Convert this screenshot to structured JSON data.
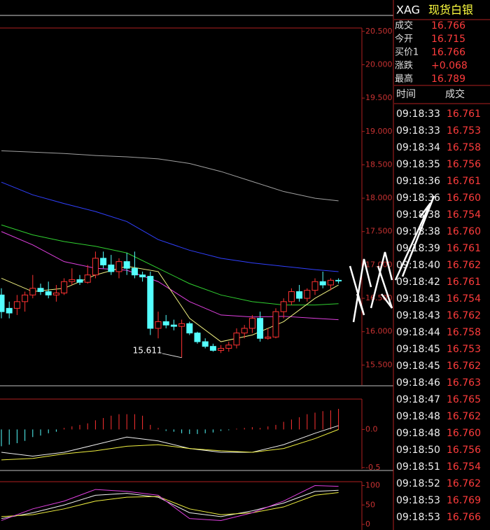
{
  "chart_data": [
    {
      "type": "candlestick",
      "open": [
        16.55,
        16.35,
        16.35,
        16.45,
        16.55,
        16.65,
        16.6,
        16.55,
        16.58,
        16.75,
        16.78,
        16.74,
        16.85,
        17.1,
        17.0,
        16.9,
        17.05,
        16.95,
        16.85,
        16.83,
        16.05,
        16.15,
        16.1,
        16.08,
        16.12,
        15.98,
        15.85,
        15.78,
        15.72,
        15.75,
        15.8,
        15.98,
        16.05,
        16.2,
        15.9,
        15.92,
        16.3,
        16.45,
        16.6,
        16.5,
        16.62,
        16.75,
        16.7,
        16.77
      ],
      "high": [
        16.65,
        16.45,
        16.55,
        16.6,
        16.85,
        16.72,
        16.75,
        16.7,
        16.8,
        16.95,
        16.85,
        17.0,
        17.2,
        17.2,
        17.15,
        17.1,
        17.18,
        17.2,
        16.9,
        16.9,
        16.3,
        16.25,
        16.18,
        16.18,
        16.15,
        16.0,
        15.9,
        15.82,
        15.8,
        15.85,
        16.05,
        16.1,
        16.25,
        16.3,
        16.05,
        16.35,
        16.5,
        16.65,
        16.7,
        16.65,
        16.8,
        16.9,
        16.8,
        16.8
      ],
      "low": [
        16.2,
        16.2,
        16.25,
        16.3,
        16.5,
        16.55,
        16.5,
        16.45,
        16.55,
        16.7,
        16.7,
        16.72,
        16.8,
        16.95,
        16.85,
        16.8,
        16.85,
        16.8,
        16.75,
        15.95,
        15.9,
        16.05,
        16.02,
        15.611,
        15.95,
        15.82,
        15.75,
        15.7,
        15.68,
        15.7,
        15.75,
        15.9,
        15.98,
        15.85,
        15.88,
        15.9,
        16.2,
        16.4,
        16.45,
        16.45,
        16.55,
        16.65,
        16.62,
        16.72
      ],
      "close": [
        16.3,
        16.28,
        16.45,
        16.55,
        16.65,
        16.6,
        16.55,
        16.58,
        16.75,
        16.78,
        16.74,
        16.85,
        17.1,
        17.0,
        16.9,
        17.05,
        16.95,
        16.85,
        16.82,
        16.05,
        16.15,
        16.1,
        16.08,
        16.12,
        15.98,
        15.85,
        15.78,
        15.72,
        15.75,
        15.8,
        15.98,
        16.05,
        16.2,
        15.9,
        15.92,
        16.3,
        16.45,
        16.6,
        16.5,
        16.62,
        16.75,
        16.7,
        16.77,
        16.766
      ],
      "up_color": "#ff3232",
      "down_color": "#54ffff",
      "lines": [
        {
          "color": "#a0a0a0",
          "x": [
            0,
            4,
            8,
            12,
            16,
            20,
            24,
            28,
            32,
            36,
            40,
            43
          ],
          "values": [
            18.71,
            18.69,
            18.67,
            18.64,
            18.62,
            18.59,
            18.52,
            18.4,
            18.25,
            18.1,
            18.0,
            17.96
          ]
        },
        {
          "color": "#3040ff",
          "x": [
            0,
            4,
            8,
            12,
            16,
            20,
            24,
            28,
            32,
            36,
            40,
            43
          ],
          "values": [
            18.24,
            18.05,
            17.92,
            17.8,
            17.65,
            17.38,
            17.22,
            17.1,
            17.03,
            16.98,
            16.93,
            16.9
          ]
        },
        {
          "color": "#30d030",
          "x": [
            0,
            4,
            8,
            12,
            16,
            20,
            24,
            28,
            32,
            36,
            40,
            43
          ],
          "values": [
            17.6,
            17.45,
            17.35,
            17.28,
            17.18,
            16.95,
            16.72,
            16.55,
            16.45,
            16.4,
            16.4,
            16.42
          ]
        },
        {
          "color": "#e040e0",
          "x": [
            0,
            4,
            8,
            12,
            16,
            20,
            24,
            28,
            32,
            36,
            40,
            43
          ],
          "values": [
            17.5,
            17.3,
            17.05,
            16.95,
            16.92,
            16.75,
            16.45,
            16.25,
            16.22,
            16.23,
            16.2,
            16.18
          ]
        },
        {
          "color": "#f0f080",
          "x": [
            0,
            4,
            8,
            12,
            16,
            20,
            24,
            28,
            32,
            36,
            40,
            43
          ],
          "values": [
            16.8,
            16.6,
            16.65,
            16.85,
            16.98,
            16.9,
            16.2,
            15.85,
            15.95,
            16.15,
            16.5,
            16.7
          ]
        }
      ],
      "ylim": [
        15.2,
        20.55
      ],
      "yticks": [
        {
          "value": 20.5,
          "label": "20.500"
        },
        {
          "value": 20,
          "label": "20.000"
        },
        {
          "value": 19.5,
          "label": "19.500"
        },
        {
          "value": 19,
          "label": "19.000"
        },
        {
          "value": 18.5,
          "label": "18.500"
        },
        {
          "value": 18,
          "label": "18.000"
        },
        {
          "value": 17.5,
          "label": "17.500"
        },
        {
          "value": 17,
          "label": "17.000"
        },
        {
          "value": 16.5,
          "label": "16.500"
        },
        {
          "value": 16,
          "label": "16.000"
        },
        {
          "value": 15.5,
          "label": "15.500"
        }
      ]
    },
    {
      "type": "macd",
      "values": [
        -0.22,
        -0.2,
        -0.18,
        -0.15,
        -0.1,
        -0.08,
        -0.05,
        -0.03,
        0.02,
        0.04,
        0.06,
        0.08,
        0.12,
        0.15,
        0.18,
        0.2,
        0.2,
        0.2,
        0.18,
        0.06,
        0.02,
        -0.02,
        -0.03,
        -0.05,
        -0.06,
        -0.06,
        -0.05,
        -0.04,
        -0.02,
        -0.01,
        0.01,
        0.02,
        0.03,
        0.02,
        0.04,
        0.06,
        0.1,
        0.13,
        0.16,
        0.2,
        0.22,
        0.24,
        0.25,
        0.27
      ],
      "up_color": "#ff3232",
      "down_color": "#54ffff",
      "lines": [
        {
          "color": "#f0f0f0",
          "x": [
            0,
            4,
            8,
            12,
            16,
            20,
            24,
            28,
            32,
            36,
            40,
            43
          ],
          "values": [
            -0.3,
            -0.35,
            -0.3,
            -0.2,
            -0.1,
            -0.15,
            -0.25,
            -0.3,
            -0.3,
            -0.2,
            -0.05,
            0.05
          ]
        },
        {
          "color": "#f0f040",
          "x": [
            0,
            4,
            8,
            12,
            16,
            20,
            24,
            28,
            32,
            36,
            40,
            43
          ],
          "values": [
            -0.4,
            -0.38,
            -0.32,
            -0.28,
            -0.22,
            -0.2,
            -0.25,
            -0.28,
            -0.3,
            -0.25,
            -0.12,
            0.0
          ]
        }
      ],
      "ylim": [
        -0.52,
        0.38
      ],
      "yticks": [
        {
          "value": 0,
          "label": "0.0"
        },
        {
          "value": -0.5,
          "label": "-0.5"
        }
      ]
    },
    {
      "type": "kdj",
      "lines": [
        {
          "color": "#f0f0f0",
          "x": [
            0,
            4,
            8,
            12,
            16,
            20,
            24,
            28,
            32,
            36,
            40,
            43
          ],
          "values": [
            15,
            30,
            50,
            75,
            80,
            70,
            30,
            20,
            35,
            55,
            85,
            88
          ]
        },
        {
          "color": "#f0f040",
          "x": [
            0,
            4,
            8,
            12,
            16,
            20,
            24,
            28,
            32,
            36,
            40,
            43
          ],
          "values": [
            20,
            25,
            40,
            60,
            70,
            72,
            40,
            25,
            30,
            45,
            75,
            82
          ]
        },
        {
          "color": "#e040e0",
          "x": [
            0,
            4,
            8,
            12,
            16,
            20,
            24,
            28,
            32,
            36,
            40,
            43
          ],
          "values": [
            10,
            40,
            60,
            90,
            85,
            75,
            15,
            10,
            30,
            60,
            100,
            98
          ]
        }
      ],
      "ylim": [
        0,
        110
      ],
      "yticks": [
        100,
        50,
        0
      ]
    }
  ],
  "panel": {
    "symbol": "XAG",
    "name": "现货白银",
    "quote": [
      {
        "label": "成交",
        "value": "16.766"
      },
      {
        "label": "今开",
        "value": "16.715"
      },
      {
        "label": "买价1",
        "value": "16.766"
      },
      {
        "label": "涨跌",
        "value": "+0.068"
      },
      {
        "label": "最高",
        "value": "16.789"
      }
    ],
    "header": [
      "时间",
      "成交"
    ],
    "ticks": [
      [
        "09:18:33",
        "16.761"
      ],
      [
        "09:18:33",
        "16.753"
      ],
      [
        "09:18:34",
        "16.758"
      ],
      [
        "09:18:35",
        "16.756"
      ],
      [
        "09:18:36",
        "16.761"
      ],
      [
        "09:18:36",
        "16.760"
      ],
      [
        "09:18:38",
        "16.754"
      ],
      [
        "09:18:38",
        "16.760"
      ],
      [
        "09:18:39",
        "16.761"
      ],
      [
        "09:18:40",
        "16.762"
      ],
      [
        "09:18:42",
        "16.761"
      ],
      [
        "09:18:43",
        "16.754"
      ],
      [
        "09:18:43",
        "16.762"
      ],
      [
        "09:18:44",
        "16.758"
      ],
      [
        "09:18:45",
        "16.753"
      ],
      [
        "09:18:45",
        "16.762"
      ],
      [
        "09:18:46",
        "16.763"
      ],
      [
        "09:18:47",
        "16.765"
      ],
      [
        "09:18:48",
        "16.762"
      ],
      [
        "09:18:48",
        "16.760"
      ],
      [
        "09:18:50",
        "16.756"
      ],
      [
        "09:18:51",
        "16.754"
      ],
      [
        "09:18:52",
        "16.762"
      ],
      [
        "09:18:53",
        "16.769"
      ],
      [
        "09:18:53",
        "16.766"
      ]
    ]
  }
}
